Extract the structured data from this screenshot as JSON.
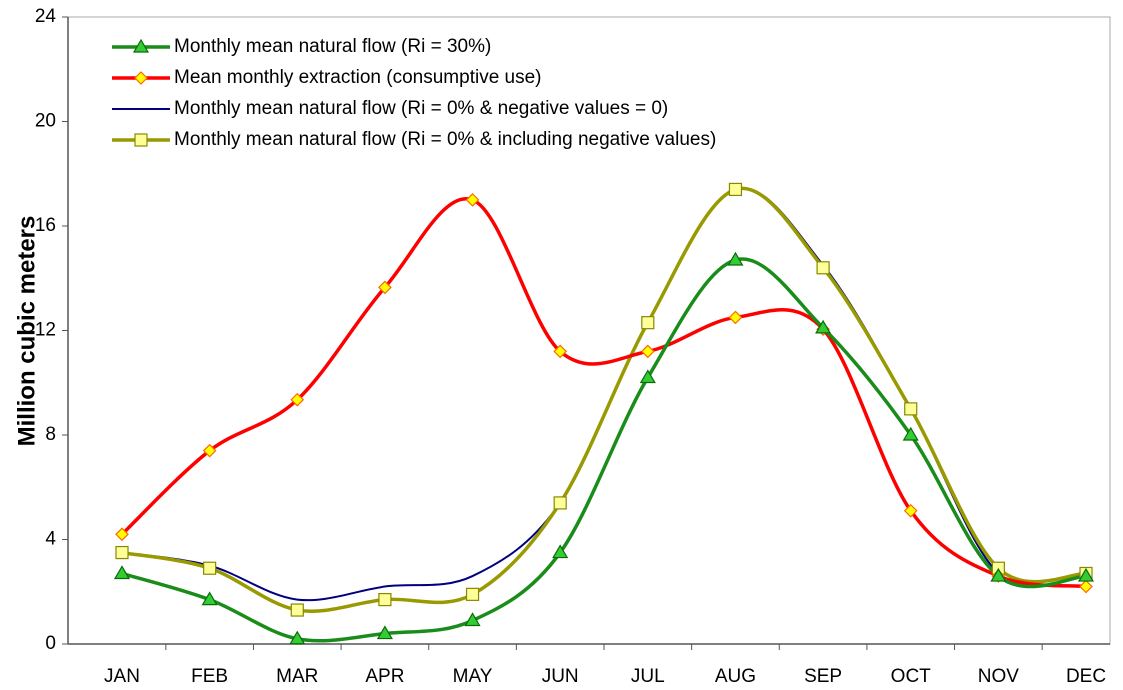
{
  "chart_data": {
    "type": "line",
    "y_label": "Million cubic meters",
    "categories": [
      "JAN",
      "FEB",
      "MAR",
      "APR",
      "MAY",
      "JUN",
      "JUL",
      "AUG",
      "SEP",
      "OCT",
      "NOV",
      "DEC"
    ],
    "ylim": [
      0,
      24
    ],
    "yticks": [
      0,
      4,
      8,
      12,
      16,
      20,
      24
    ],
    "grid": false,
    "legend": "upper-left",
    "smooth": true,
    "series": [
      {
        "name": "Monthly mean natural flow (Ri = 30%)",
        "color": "#1a8c1a",
        "marker": "triangle",
        "marker_fill": "#33cc33",
        "values": [
          2.7,
          1.7,
          0.2,
          0.4,
          0.9,
          3.5,
          10.2,
          14.7,
          12.1,
          8.0,
          2.6,
          2.6
        ]
      },
      {
        "name": "Mean monthly extraction (consumptive use)",
        "color": "#ff0000",
        "marker": "diamond",
        "marker_fill": "#ffff00",
        "values": [
          4.2,
          7.4,
          9.35,
          13.65,
          17.0,
          11.2,
          11.2,
          12.5,
          12.05,
          5.1,
          2.6,
          2.2
        ]
      },
      {
        "name": "Monthly mean natural flow (Ri = 0% & negative values = 0)",
        "color": "#000080",
        "marker": "none",
        "values": [
          3.5,
          3.0,
          1.7,
          2.2,
          2.6,
          5.4,
          12.3,
          17.4,
          14.5,
          9.0,
          2.7,
          2.6
        ]
      },
      {
        "name": "Monthly mean natural flow (Ri = 0% & including negative values)",
        "color": "#999900",
        "marker": "square",
        "marker_fill": "#ffff99",
        "values": [
          3.5,
          2.9,
          1.3,
          1.7,
          1.9,
          5.4,
          12.3,
          17.4,
          14.4,
          9.0,
          2.9,
          2.7
        ]
      }
    ]
  }
}
